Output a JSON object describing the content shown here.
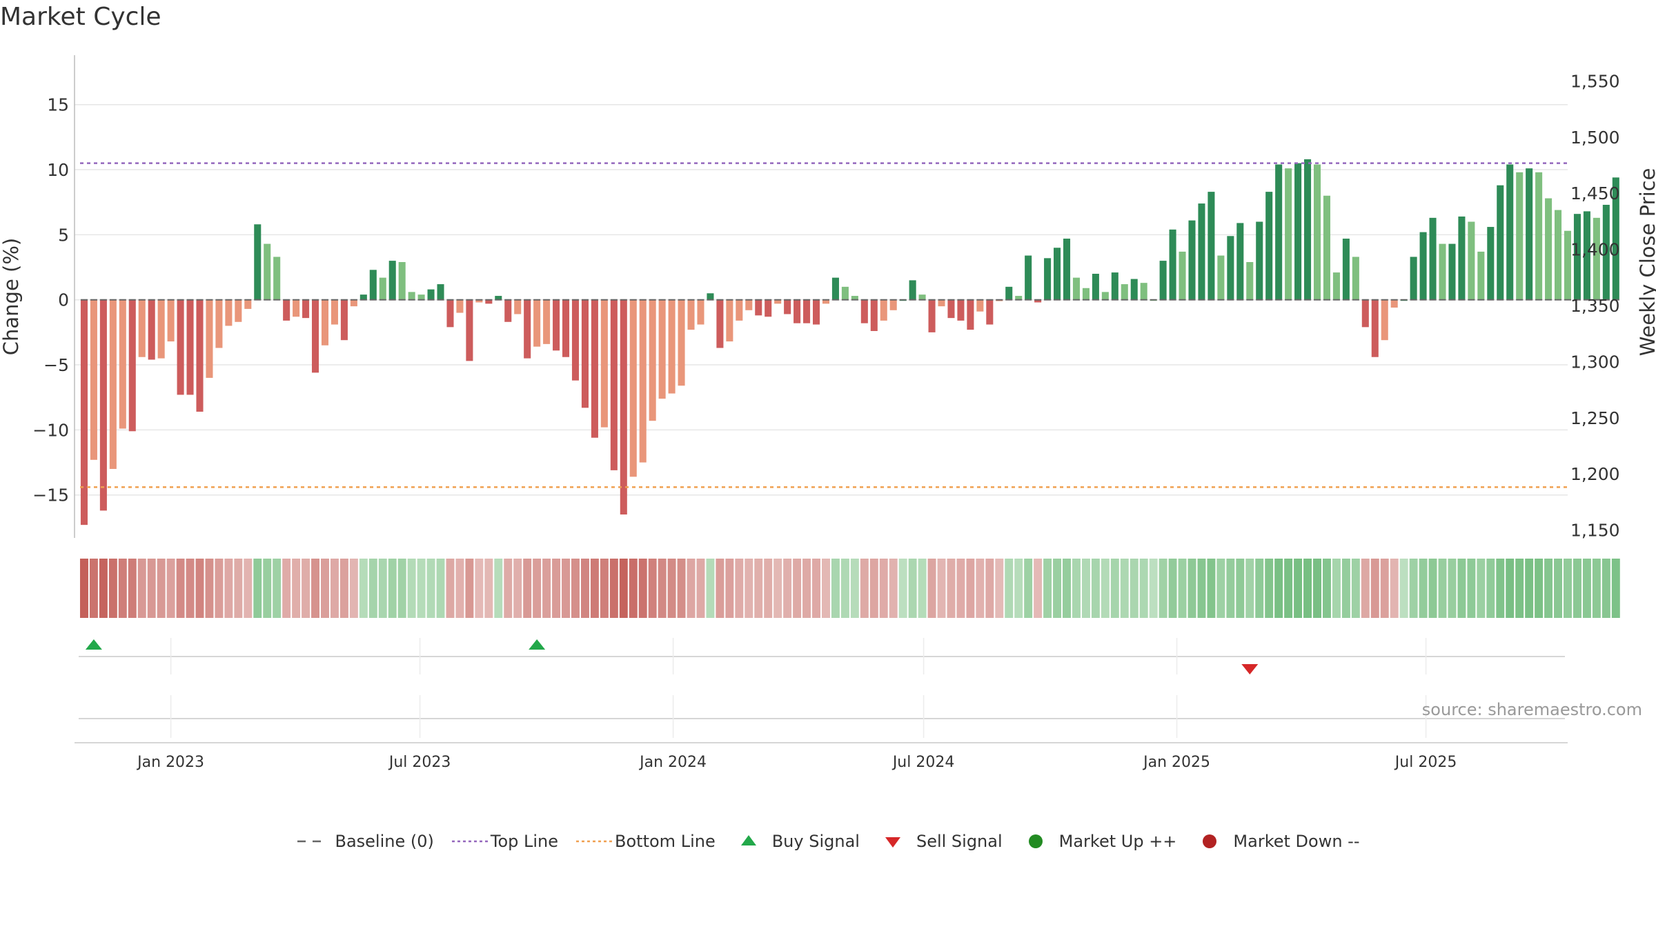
{
  "chart_data": {
    "type": "bar",
    "title": "Market Cycle",
    "ylabel": "Change (%)",
    "y2label": "Weekly Close Price",
    "ylim": [
      -18.3,
      18.8
    ],
    "y2lim": [
      1143,
      1573
    ],
    "yticks": [
      -15,
      -10,
      -5,
      0,
      5,
      10,
      15
    ],
    "yticklabels": [
      "−15",
      "−10",
      "−5",
      "0",
      "5",
      "10",
      "15"
    ],
    "y2ticks": [
      1150,
      1200,
      1250,
      1300,
      1350,
      1400,
      1450,
      1500,
      1550
    ],
    "y2ticklabels": [
      "1,150",
      "1,200",
      "1,250",
      "1,300",
      "1,350",
      "1,400",
      "1,450",
      "1,500",
      "1,550"
    ],
    "xrange": [
      "2022-10-23",
      "2025-10-12"
    ],
    "xticks": [
      "2023-01-01",
      "2023-07-01",
      "2024-01-01",
      "2024-07-01",
      "2025-01-01",
      "2025-07-01"
    ],
    "xticklabels": [
      "Jan 2023",
      "Jul 2023",
      "Jan 2024",
      "Jul 2024",
      "Jan 2025",
      "Jul 2025"
    ],
    "top_line": 10.5,
    "bottom_line": -14.4,
    "series": [
      {
        "name": "Change (%)",
        "start_date": "2022-10-30",
        "interval_days": 7,
        "values": [
          -17.3,
          -12.3,
          -16.2,
          -13.0,
          -9.9,
          -10.1,
          -4.4,
          -4.6,
          -4.5,
          -3.2,
          -7.3,
          -7.3,
          -8.6,
          -6.0,
          -3.7,
          -2.0,
          -1.7,
          -0.7,
          5.8,
          4.3,
          3.3,
          -1.6,
          -1.3,
          -1.4,
          -5.6,
          -3.5,
          -1.9,
          -3.1,
          -0.5,
          0.4,
          2.3,
          1.7,
          3.0,
          2.9,
          0.6,
          0.4,
          0.8,
          1.2,
          -2.1,
          -1.0,
          -4.7,
          -0.2,
          -0.3,
          0.3,
          -1.7,
          -1.1,
          -4.5,
          -3.6,
          -3.4,
          -3.9,
          -4.4,
          -6.2,
          -8.3,
          -10.6,
          -9.8,
          -13.1,
          -16.5,
          -13.6,
          -12.5,
          -9.3,
          -7.6,
          -7.2,
          -6.6,
          -2.3,
          -1.9,
          0.5,
          -3.7,
          -3.2,
          -1.6,
          -0.8,
          -1.2,
          -1.3,
          -0.3,
          -1.1,
          -1.8,
          -1.8,
          -1.9,
          -0.3,
          1.7,
          1.0,
          0.3,
          -1.8,
          -2.4,
          -1.6,
          -0.8,
          0.0,
          1.5,
          0.4,
          -2.5,
          -0.5,
          -1.4,
          -1.6,
          -2.3,
          -0.9,
          -1.9,
          -0.1,
          1.0,
          0.3,
          3.4,
          -0.2,
          3.2,
          4.0,
          4.7,
          1.7,
          0.9,
          2.0,
          0.6,
          2.1,
          1.2,
          1.6,
          1.3,
          0.0,
          3.0,
          5.4,
          3.7,
          6.1,
          7.4,
          8.3,
          3.4,
          4.9,
          5.9,
          2.9,
          6.0,
          8.3,
          10.4,
          10.1,
          10.5,
          10.8,
          10.4,
          8.0,
          2.1,
          4.7,
          3.3,
          -2.1,
          -4.4,
          -3.1,
          -0.6,
          0.0,
          3.3,
          5.2,
          6.3,
          4.3,
          4.3,
          6.4,
          6.0,
          3.7,
          5.6,
          8.8,
          10.4,
          9.8,
          10.1,
          9.8,
          7.8,
          6.9,
          5.3,
          6.6,
          6.8,
          6.3,
          7.3,
          9.4
        ]
      },
      {
        "name": "Weekly Close Price",
        "values": []
      }
    ],
    "signals": [
      {
        "type": "Buy Signal",
        "date": "2022-11-06"
      },
      {
        "type": "Buy Signal",
        "date": "2023-09-24"
      },
      {
        "type": "Sell Signal",
        "date": "2025-02-23"
      }
    ],
    "legend": [
      "Baseline (0)",
      "Top Line",
      "Bottom Line",
      "Buy Signal",
      "Sell Signal",
      "Market Up ++",
      "Market Down --"
    ],
    "legend_position": "bottom",
    "grid": true,
    "colors": {
      "up_strong": "#2e8b57",
      "up_weak": "#7fbf7f",
      "down_strong": "#cd5c5c",
      "down_weak": "#e9967a",
      "top_line": "#9467bd",
      "bottom_line": "#f0a050",
      "baseline": "#666666",
      "buy": "#22a84a",
      "sell": "#d62728",
      "market_up": "#228b22",
      "market_down": "#b22222"
    },
    "source": "source: sharemaestro.com"
  }
}
